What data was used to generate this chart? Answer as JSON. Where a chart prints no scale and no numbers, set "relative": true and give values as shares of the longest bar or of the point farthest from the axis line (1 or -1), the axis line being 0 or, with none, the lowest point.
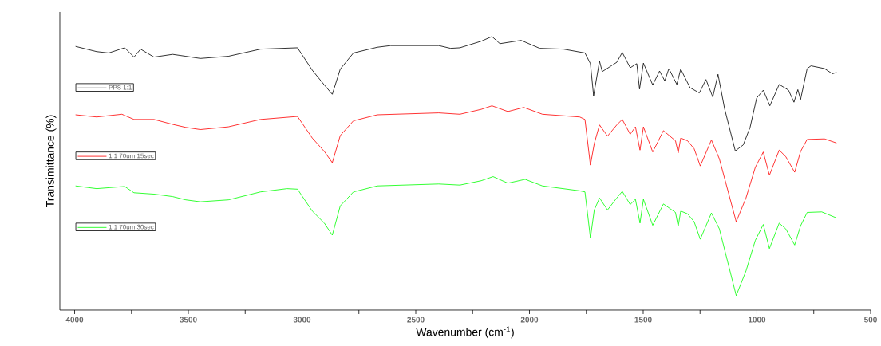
{
  "chart_data": {
    "type": "line",
    "relative": true,
    "legend": "left",
    "xlabel": "Wavenumber (cm$^{-1}$)",
    "ylabel": "Transimittance (%)",
    "xlim": [
      4065,
      500
    ],
    "xticks": [
      4000,
      {
        "value": 3750,
        "label": null
      },
      3500,
      {
        "value": 3250,
        "label": null
      },
      3000,
      {
        "value": 2750,
        "label": null
      },
      2500,
      {
        "value": 2250,
        "label": null
      },
      2000,
      {
        "value": 1750,
        "label": null
      },
      1500,
      {
        "value": 1250,
        "label": null
      },
      1000,
      {
        "value": 750,
        "label": null
      },
      500
    ],
    "x": [
      3996,
      3903,
      3850,
      3780,
      3739,
      3710,
      3651,
      3569,
      3511,
      3447,
      3324,
      3183,
      3020,
      2955,
      2902,
      2867,
      2832,
      2774,
      2669,
      2610,
      2399,
      2347,
      2306,
      2212,
      2165,
      2130,
      2037,
      1955,
      1850,
      1756,
      1732,
      1718,
      1692,
      1680,
      1616,
      1592,
      1557,
      1528,
      1516,
      1499,
      1458,
      1428,
      1405,
      1387,
      1352,
      1335,
      1294,
      1253,
      1224,
      1194,
      1171,
      1142,
      1095,
      1060,
      1030,
      1001,
      972,
      943,
      902,
      861,
      837,
      820,
      808,
      779,
      762,
      703,
      668,
      650
    ],
    "series": [
      {
        "name": "PPS 1:1",
        "color": "#000000",
        "values": [
          0.964,
          0.945,
          0.94,
          0.959,
          0.925,
          0.954,
          0.925,
          0.935,
          0.928,
          0.92,
          0.928,
          0.954,
          0.959,
          0.877,
          0.823,
          0.789,
          0.881,
          0.94,
          0.961,
          0.967,
          0.967,
          0.957,
          0.959,
          0.983,
          1.0,
          0.974,
          0.986,
          0.957,
          0.954,
          0.94,
          0.901,
          0.784,
          0.91,
          0.872,
          0.906,
          0.942,
          0.886,
          0.901,
          0.808,
          0.903,
          0.823,
          0.874,
          0.838,
          0.883,
          0.825,
          0.881,
          0.813,
          0.794,
          0.843,
          0.779,
          0.862,
          0.736,
          0.582,
          0.604,
          0.668,
          0.775,
          0.804,
          0.747,
          0.825,
          0.804,
          0.76,
          0.806,
          0.77,
          0.883,
          0.893,
          0.883,
          0.864,
          0.869
        ]
      },
      {
        "name": "1:1 70um 15sec",
        "color": "#ff0000",
        "x": [
          3996,
          3903,
          3792,
          3739,
          3651,
          3569,
          3511,
          3447,
          3324,
          3183,
          3020,
          2955,
          2902,
          2867,
          2832,
          2774,
          2669,
          2399,
          2306,
          2212,
          2165,
          2095,
          2025,
          1943,
          1779,
          1756,
          1732,
          1715,
          1692,
          1657,
          1616,
          1592,
          1557,
          1534,
          1514,
          1499,
          1458,
          1411,
          1358,
          1346,
          1335,
          1305,
          1276,
          1249,
          1200,
          1165,
          1091,
          1048,
          1007,
          972,
          945,
          902,
          873,
          834,
          808,
          779,
          703,
          650
        ],
        "values": [
          0.714,
          0.706,
          0.716,
          0.697,
          0.697,
          0.679,
          0.668,
          0.66,
          0.67,
          0.697,
          0.708,
          0.629,
          0.58,
          0.539,
          0.638,
          0.692,
          0.714,
          0.721,
          0.716,
          0.734,
          0.747,
          0.726,
          0.741,
          0.716,
          0.706,
          0.697,
          0.53,
          0.609,
          0.677,
          0.636,
          0.677,
          0.697,
          0.643,
          0.67,
          0.585,
          0.67,
          0.578,
          0.656,
          0.619,
          0.575,
          0.629,
          0.619,
          0.59,
          0.527,
          0.622,
          0.553,
          0.323,
          0.41,
          0.522,
          0.578,
          0.493,
          0.585,
          0.561,
          0.504,
          0.58,
          0.624,
          0.626,
          0.611
        ]
      },
      {
        "name": "1:1 70um 30sec",
        "color": "#00ff00",
        "x": [
          3996,
          3903,
          3780,
          3739,
          3651,
          3569,
          3511,
          3447,
          3324,
          3183,
          3066,
          3020,
          2955,
          2902,
          2867,
          2832,
          2774,
          2669,
          2399,
          2306,
          2212,
          2160,
          2095,
          2019,
          1943,
          1779,
          1756,
          1732,
          1715,
          1692,
          1657,
          1616,
          1592,
          1557,
          1534,
          1514,
          1499,
          1458,
          1411,
          1358,
          1346,
          1335,
          1305,
          1276,
          1249,
          1200,
          1165,
          1091,
          1048,
          1007,
          972,
          945,
          902,
          873,
          834,
          808,
          779,
          715,
          650
        ],
        "values": [
          0.454,
          0.444,
          0.452,
          0.429,
          0.424,
          0.415,
          0.403,
          0.396,
          0.403,
          0.432,
          0.444,
          0.442,
          0.362,
          0.318,
          0.274,
          0.381,
          0.432,
          0.454,
          0.461,
          0.457,
          0.473,
          0.488,
          0.464,
          0.478,
          0.454,
          0.436,
          0.432,
          0.264,
          0.366,
          0.41,
          0.366,
          0.41,
          0.434,
          0.386,
          0.405,
          0.318,
          0.405,
          0.31,
          0.388,
          0.357,
          0.306,
          0.362,
          0.352,
          0.323,
          0.259,
          0.355,
          0.297,
          0.053,
          0.143,
          0.255,
          0.313,
          0.225,
          0.318,
          0.297,
          0.238,
          0.308,
          0.357,
          0.359,
          0.337
        ]
      }
    ]
  }
}
